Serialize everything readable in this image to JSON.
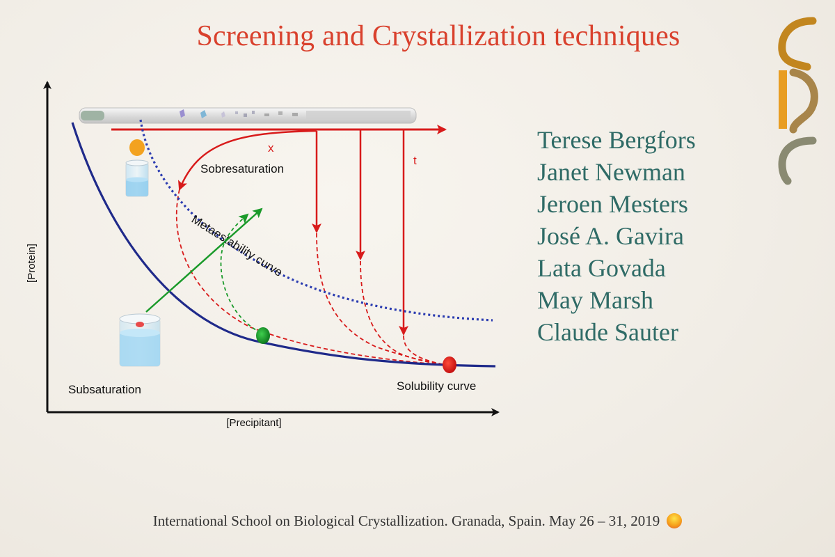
{
  "slide": {
    "title": "Screening and Crystallization techniques",
    "authors": [
      "Terese Bergfors",
      "Janet Newman",
      "Jeroen Mesters",
      "José A. Gavira",
      "Lata Govada",
      "May Marsh",
      "Claude Sauter"
    ],
    "footer": "International School on Biological Crystallization. Granada, Spain. May 26 – 31, 2019"
  },
  "diagram": {
    "y_axis_label": "[Protein]",
    "x_axis_label": "[Precipitant]",
    "region_upper": "Sobresaturation",
    "region_lower": "Subsaturation",
    "curve_metastability": "Metaestability curve",
    "curve_solubility": "Solubility curve",
    "arrow_x_label": "x",
    "arrow_t_label": "t",
    "colors": {
      "solubility": "#1f2a8a",
      "metastability": "#2a3bb0",
      "red": "#d81b1b",
      "green": "#1a9a2a",
      "orange": "#f3a21f"
    }
  }
}
